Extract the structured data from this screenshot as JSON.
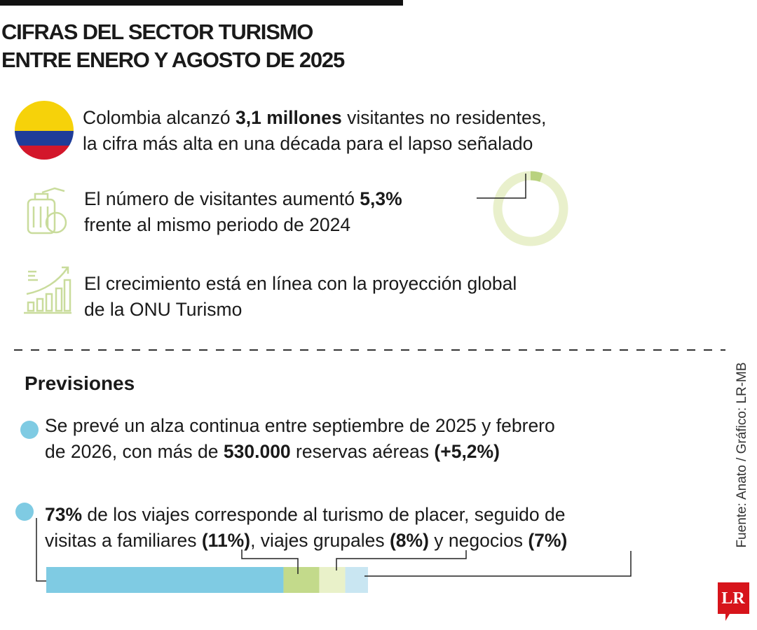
{
  "header": {
    "title_lines": [
      "CIFRAS DEL SECTOR TURISMO",
      "ENTRE ENERO Y AGOSTO DE 2025"
    ]
  },
  "highlights": [
    {
      "lines": [
        [
          {
            "text": "Colombia alcanzó "
          },
          {
            "text": "3,1 millones",
            "bold": true
          },
          {
            "text": " visitantes no residentes,"
          }
        ],
        [
          {
            "text": "la cifra más alta en una década para el lapso señalado"
          }
        ]
      ]
    },
    {
      "lines": [
        [
          {
            "text": "El número de visitantes aumentó "
          },
          {
            "text": "5,3%",
            "bold": true
          }
        ],
        [
          {
            "text": "frente al mismo periodo de 2024"
          }
        ]
      ]
    },
    {
      "lines": [
        [
          {
            "text": "El crecimiento está en línea con la proyección global"
          }
        ],
        [
          {
            "text": "de la ONU Turismo"
          }
        ]
      ]
    }
  ],
  "growth_ring": {
    "value": 5.3,
    "color": "#b9d27f",
    "track_color": "#e9f0cc"
  },
  "section_title": "Previsiones",
  "forecasts": [
    {
      "lines": [
        [
          {
            "text": "Se prevé un alza continua entre septiembre de 2025 y febrero"
          }
        ],
        [
          {
            "text": "de 2026, con más de "
          },
          {
            "text": "530.000",
            "bold": true
          },
          {
            "text": " reservas aéreas "
          },
          {
            "text": "(+5,2%)",
            "bold": true
          }
        ]
      ]
    },
    {
      "lines": [
        [
          {
            "text": "73%",
            "bold": true
          },
          {
            "text": " de los viajes corresponde al turismo de placer, seguido de"
          }
        ],
        [
          {
            "text": "visitas a familiares "
          },
          {
            "text": "(11%)",
            "bold": true
          },
          {
            "text": ", viajes grupales "
          },
          {
            "text": "(8%)",
            "bold": true
          },
          {
            "text": " y negocios "
          },
          {
            "text": "(7%)",
            "bold": true
          }
        ]
      ]
    }
  ],
  "trip_breakdown": {
    "values": [
      73,
      11,
      8,
      7
    ],
    "colors": [
      "#7fcbe3",
      "#c3da8b",
      "#e9f1c9",
      "#c9e6f2"
    ]
  },
  "source": "Fuente: Anato / Gráfico: LR-MB",
  "logo": "LR"
}
